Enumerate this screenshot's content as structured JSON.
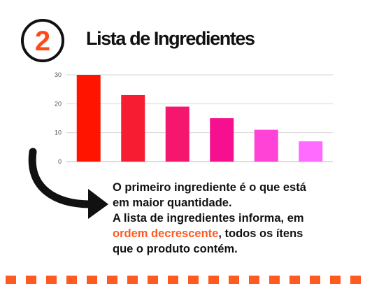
{
  "badge": {
    "number": "2",
    "color": "#ff4a17"
  },
  "title": "Lista de Ingredientes",
  "chart_data": {
    "type": "bar",
    "categories": [
      "",
      "",
      "",
      "",
      "",
      ""
    ],
    "values": [
      30,
      23,
      19,
      15,
      11,
      7
    ],
    "colors": [
      "#ff1400",
      "#f81c33",
      "#f5166e",
      "#f6108f",
      "#ff43d6",
      "#ff6bff"
    ],
    "yticks": [
      0,
      10,
      20,
      30
    ],
    "ylim": [
      0,
      30
    ],
    "grid": true,
    "title": "",
    "xlabel": "",
    "ylabel": ""
  },
  "text": {
    "line1": "O primeiro ingrediente é o que está",
    "line2": "em maior quantidade.",
    "line3": "A lista de ingredientes informa, em",
    "highlight": "ordem decrescente",
    "line4_rest": ", todos os ítens",
    "line5": "que o produto contém."
  },
  "accent_color": "#ff5a1f",
  "decor": {
    "arrow": "curved-arrow-icon"
  }
}
